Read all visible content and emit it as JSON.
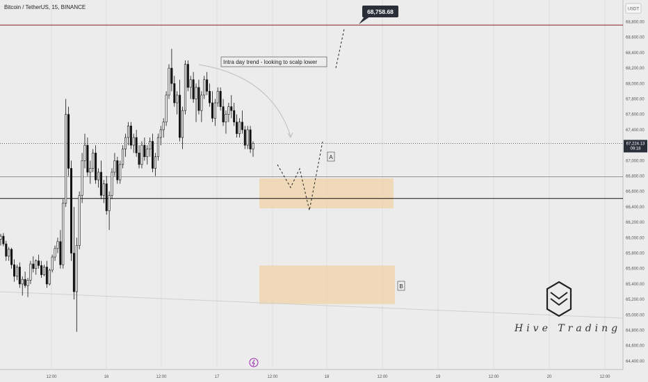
{
  "chart_data": {
    "type": "candlestick",
    "title": "Bitcoin / TetherUS, 15, BINANCE",
    "currency": "USDT",
    "ylim": [
      64320,
      68950
    ],
    "y_ticks": [
      "68,800.00",
      "68,600.00",
      "68,400.00",
      "68,200.00",
      "68,000.00",
      "67,800.00",
      "67,600.00",
      "67,400.00",
      "67,200.00",
      "67,000.00",
      "66,800.00",
      "66,600.00",
      "66,400.00",
      "66,200.00",
      "66,000.00",
      "65,800.00",
      "65,600.00",
      "65,400.00",
      "65,200.00",
      "65,000.00",
      "64,800.00",
      "64,600.00",
      "64,400.00"
    ],
    "y_tick_values": [
      68800,
      68600,
      68400,
      68200,
      68000,
      67800,
      67600,
      67400,
      67200,
      67000,
      66800,
      66600,
      66400,
      66200,
      66000,
      65800,
      65600,
      65400,
      65200,
      65000,
      64800,
      64600,
      64400
    ],
    "x_ticks": [
      "12:00",
      "16",
      "12:00",
      "17",
      "12:00",
      "18",
      "12:00",
      "19",
      "12:00",
      "20",
      "12:00"
    ],
    "current_price": "67,224.13",
    "countdown": "09:18",
    "target_price": "68,758.68",
    "target_price_value": 68758.68,
    "levels": [
      66790,
      66510
    ],
    "zones": [
      {
        "label": "",
        "from": 66380,
        "to": 66770
      },
      {
        "label": "B",
        "from": 65140,
        "to": 65640
      }
    ],
    "annotations": {
      "trend_note": "Intra day trend - looking to scalp lower",
      "marker_a": "A",
      "marker_b": "B"
    },
    "candles": [
      [
        65980,
        66050,
        65900,
        66020
      ],
      [
        66020,
        66060,
        65890,
        65920
      ],
      [
        65920,
        65960,
        65700,
        65760
      ],
      [
        65760,
        65880,
        65700,
        65850
      ],
      [
        65850,
        65870,
        65600,
        65650
      ],
      [
        65650,
        65720,
        65430,
        65500
      ],
      [
        65500,
        65650,
        65450,
        65620
      ],
      [
        65620,
        65680,
        65350,
        65400
      ],
      [
        65400,
        65500,
        65250,
        65460
      ],
      [
        65460,
        65560,
        65350,
        65380
      ],
      [
        65380,
        65480,
        65230,
        65450
      ],
      [
        65450,
        65700,
        65400,
        65660
      ],
      [
        65660,
        65760,
        65550,
        65600
      ],
      [
        65600,
        65720,
        65520,
        65700
      ],
      [
        65700,
        65780,
        65600,
        65640
      ],
      [
        65640,
        65700,
        65480,
        65520
      ],
      [
        65520,
        65650,
        65500,
        65620
      ],
      [
        65620,
        65700,
        65350,
        65400
      ],
      [
        65400,
        65600,
        65380,
        65580
      ],
      [
        65580,
        65780,
        65550,
        65750
      ],
      [
        65750,
        65900,
        65700,
        65860
      ],
      [
        65860,
        66000,
        65800,
        65950
      ],
      [
        65950,
        66100,
        65600,
        65650
      ],
      [
        65650,
        66500,
        65600,
        66450
      ],
      [
        66450,
        67800,
        66400,
        67600
      ],
      [
        67600,
        67700,
        66800,
        66900
      ],
      [
        66900,
        67000,
        65700,
        65800
      ],
      [
        65800,
        66400,
        65200,
        65300
      ],
      [
        65300,
        66000,
        64780,
        65900
      ],
      [
        65900,
        66600,
        65850,
        66550
      ],
      [
        66550,
        67100,
        66450,
        67000
      ],
      [
        67000,
        67350,
        66900,
        67200
      ],
      [
        67200,
        67300,
        66800,
        66850
      ],
      [
        66850,
        67000,
        66700,
        66900
      ],
      [
        66900,
        67150,
        66850,
        67100
      ],
      [
        67100,
        67200,
        66700,
        66750
      ],
      [
        66750,
        66900,
        66650,
        66850
      ],
      [
        66850,
        67000,
        66500,
        66550
      ],
      [
        66550,
        66750,
        66450,
        66700
      ],
      [
        66700,
        66800,
        66300,
        66350
      ],
      [
        66350,
        66600,
        66100,
        66550
      ],
      [
        66550,
        66900,
        66500,
        66850
      ],
      [
        66850,
        67100,
        66800,
        67000
      ],
      [
        67000,
        67050,
        66700,
        66750
      ],
      [
        66750,
        67000,
        66700,
        66950
      ],
      [
        66950,
        67200,
        66900,
        67150
      ],
      [
        67150,
        67350,
        67050,
        67300
      ],
      [
        67300,
        67500,
        67200,
        67450
      ],
      [
        67450,
        67500,
        67150,
        67200
      ],
      [
        67200,
        67350,
        67100,
        67300
      ],
      [
        67300,
        67400,
        67050,
        67100
      ],
      [
        67100,
        67200,
        66900,
        66950
      ],
      [
        66950,
        67250,
        66900,
        67200
      ],
      [
        67200,
        67300,
        67000,
        67050
      ],
      [
        67050,
        67200,
        66950,
        67150
      ],
      [
        67150,
        67300,
        67050,
        67250
      ],
      [
        67250,
        67350,
        66850,
        66900
      ],
      [
        66900,
        67100,
        66800,
        67050
      ],
      [
        67050,
        67350,
        67000,
        67300
      ],
      [
        67300,
        67450,
        67200,
        67400
      ],
      [
        67400,
        67550,
        67300,
        67500
      ],
      [
        67500,
        67900,
        67450,
        67850
      ],
      [
        67850,
        68250,
        67800,
        68200
      ],
      [
        68200,
        68450,
        67900,
        68000
      ],
      [
        68000,
        68100,
        67700,
        67750
      ],
      [
        67750,
        67900,
        67600,
        67850
      ],
      [
        67850,
        68050,
        67250,
        67300
      ],
      [
        67300,
        67700,
        67150,
        67650
      ],
      [
        67650,
        68300,
        67600,
        68250
      ],
      [
        68250,
        68300,
        67900,
        67950
      ],
      [
        67950,
        68100,
        67800,
        68050
      ],
      [
        68050,
        68150,
        67750,
        67800
      ],
      [
        67800,
        68000,
        67500,
        67950
      ],
      [
        67950,
        68050,
        67600,
        67650
      ],
      [
        67650,
        67900,
        67500,
        67850
      ],
      [
        67850,
        68100,
        67800,
        68050
      ],
      [
        68050,
        68150,
        67850,
        67900
      ],
      [
        67900,
        68000,
        67700,
        67750
      ],
      [
        67750,
        67900,
        67500,
        67550
      ],
      [
        67550,
        67800,
        67450,
        67750
      ],
      [
        67750,
        67950,
        67700,
        67900
      ],
      [
        67900,
        67950,
        67650,
        67700
      ],
      [
        67700,
        67800,
        67450,
        67500
      ],
      [
        67500,
        67650,
        67350,
        67600
      ],
      [
        67600,
        67750,
        67500,
        67700
      ],
      [
        67700,
        67850,
        67550,
        67650
      ],
      [
        67650,
        67750,
        67450,
        67500
      ],
      [
        67500,
        67600,
        67300,
        67350
      ],
      [
        67350,
        67550,
        67300,
        67500
      ],
      [
        67500,
        67650,
        67350,
        67400
      ],
      [
        67400,
        67450,
        67150,
        67200
      ],
      [
        67200,
        67450,
        67150,
        67400
      ],
      [
        67400,
        67450,
        67100,
        67150
      ],
      [
        67150,
        67250,
        67050,
        67224
      ]
    ]
  }
}
